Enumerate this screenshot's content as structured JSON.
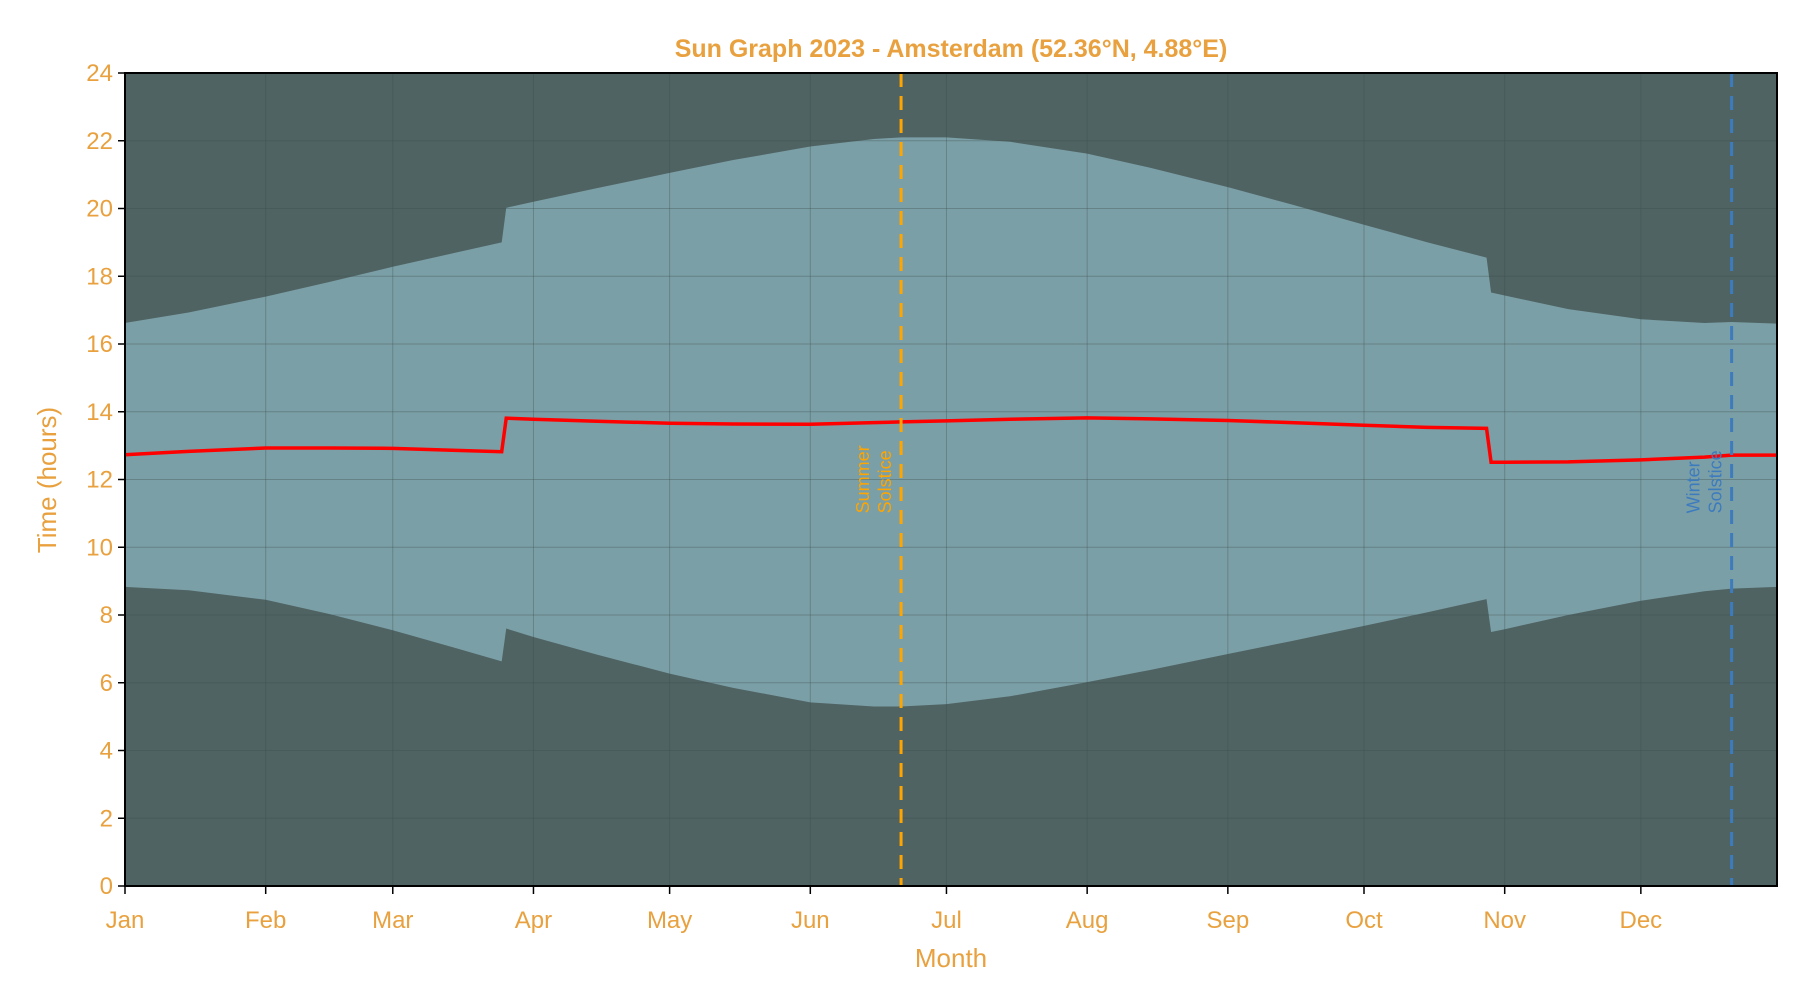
{
  "chart_data": {
    "type": "area",
    "title": "Sun Graph 2023 - Amsterdam (52.36°N, 4.88°E)",
    "xlabel": "Month",
    "ylabel": "Time (hours)",
    "ylim": [
      0,
      24
    ],
    "yticks": [
      0,
      2,
      4,
      6,
      8,
      10,
      12,
      14,
      16,
      18,
      20,
      22,
      24
    ],
    "xticks": [
      "Jan",
      "Feb",
      "Mar",
      "Apr",
      "May",
      "Jun",
      "Jul",
      "Aug",
      "Sep",
      "Oct",
      "Nov",
      "Dec"
    ],
    "grid": true,
    "colors": {
      "night": "#4f6363",
      "daylight": "#7b9fa6",
      "midday_line": "#ff0000",
      "text": "#e8a13e",
      "summer_solstice": "#ffa500",
      "winter_solstice": "#3d7bbf"
    },
    "dates": [
      "2023-01-01",
      "2023-01-15",
      "2023-02-01",
      "2023-02-15",
      "2023-03-01",
      "2023-03-15",
      "2023-03-25",
      "2023-03-26",
      "2023-04-01",
      "2023-04-15",
      "2023-05-01",
      "2023-05-15",
      "2023-06-01",
      "2023-06-15",
      "2023-06-21",
      "2023-07-01",
      "2023-07-15",
      "2023-08-01",
      "2023-08-15",
      "2023-09-01",
      "2023-09-15",
      "2023-10-01",
      "2023-10-15",
      "2023-10-28",
      "2023-10-29",
      "2023-11-01",
      "2023-11-15",
      "2023-12-01",
      "2023-12-15",
      "2023-12-21",
      "2023-12-31"
    ],
    "series": [
      {
        "key": "sunrise",
        "values": [
          8.83,
          8.73,
          8.45,
          8.03,
          7.55,
          7.02,
          6.63,
          7.6,
          7.35,
          6.83,
          6.27,
          5.85,
          5.42,
          5.3,
          5.3,
          5.37,
          5.6,
          6.02,
          6.38,
          6.85,
          7.23,
          7.68,
          8.08,
          8.47,
          7.5,
          7.58,
          8.0,
          8.42,
          8.7,
          8.78,
          8.83
        ]
      },
      {
        "key": "sunset",
        "values": [
          16.62,
          16.93,
          17.4,
          17.83,
          18.28,
          18.7,
          19.0,
          20.02,
          20.2,
          20.6,
          21.05,
          21.43,
          21.83,
          22.05,
          22.1,
          22.1,
          21.97,
          21.62,
          21.2,
          20.63,
          20.12,
          19.52,
          19.0,
          18.55,
          17.52,
          17.43,
          17.03,
          16.73,
          16.62,
          16.65,
          16.6
        ]
      },
      {
        "key": "midday",
        "values": [
          12.73,
          12.83,
          12.93,
          12.93,
          12.92,
          12.86,
          12.82,
          13.81,
          13.78,
          13.72,
          13.66,
          13.64,
          13.63,
          13.68,
          13.7,
          13.73,
          13.78,
          13.82,
          13.79,
          13.74,
          13.68,
          13.6,
          13.54,
          13.51,
          12.51,
          12.51,
          12.52,
          12.58,
          12.66,
          12.72,
          12.72
        ]
      }
    ],
    "annotations": [
      {
        "date": "2023-06-21",
        "label_1": "Summer",
        "label_2": "Solstice",
        "color_key": "summer_solstice"
      },
      {
        "date": "2023-12-21",
        "label_1": "Winter",
        "label_2": "Solstice",
        "color_key": "winter_solstice"
      }
    ]
  }
}
